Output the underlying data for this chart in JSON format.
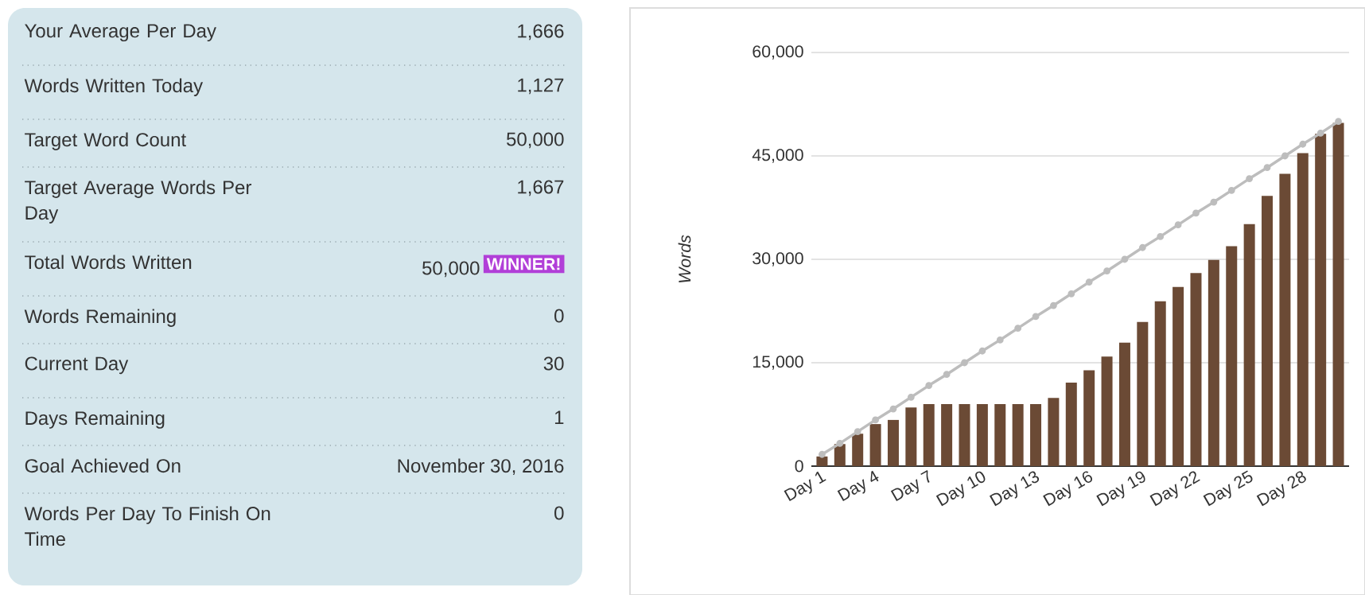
{
  "chart_data": [
    {
      "type": "other",
      "categories": [
        "Your Average Per Day",
        "Words Written Today",
        "Target Word Count",
        "Target Average Words Per Day",
        "Total Words Written",
        "Words Remaining",
        "Current Day",
        "Days Remaining",
        "Goal Achieved On",
        "Words Per Day To Finish On Time"
      ],
      "value_labels": [
        "1,666",
        "1,127",
        "50,000",
        "1,667",
        "50,000",
        "0",
        "30",
        "1",
        "November 30, 2016",
        "0"
      ],
      "annotations": [
        "WINNER!"
      ]
    },
    {
      "type": "bar",
      "ylabel": "Words",
      "categories": [
        "Day 1",
        null,
        null,
        "Day 4",
        null,
        null,
        "Day 7",
        null,
        null,
        "Day 10",
        null,
        null,
        "Day 13",
        null,
        null,
        "Day 16",
        null,
        null,
        "Day 19",
        null,
        null,
        "Day 22",
        null,
        null,
        "Day 25",
        null,
        null,
        "Day 28",
        null,
        null
      ],
      "ylim": [
        0,
        60000
      ],
      "yticks": [
        0,
        {
          "value": 15000,
          "label": "15,000"
        },
        {
          "value": 30000,
          "label": "30,000"
        },
        {
          "value": 45000,
          "label": "45,000"
        },
        {
          "value": 60000,
          "label": "60,000"
        }
      ],
      "grid": "y",
      "series": [
        {
          "type": "bar",
          "color": "#6b4a35",
          "values": [
            1400,
            3200,
            4700,
            6100,
            6700,
            8500,
            9000,
            9000,
            9000,
            9000,
            9000,
            9000,
            9000,
            9900,
            12100,
            13900,
            15900,
            17900,
            20900,
            23900,
            26000,
            28000,
            29900,
            31900,
            35100,
            39200,
            42400,
            45400,
            48200,
            49800
          ]
        },
        {
          "type": "line",
          "color": "#bdbdbd",
          "marker": "circle",
          "values": [
            1700,
            3300,
            5000,
            6700,
            8300,
            10000,
            11700,
            13300,
            15000,
            16700,
            18300,
            20000,
            21700,
            23300,
            25000,
            26700,
            28300,
            30000,
            31700,
            33300,
            35000,
            36700,
            38300,
            40000,
            41700,
            43300,
            45000,
            46700,
            48300,
            50000
          ]
        }
      ]
    }
  ]
}
